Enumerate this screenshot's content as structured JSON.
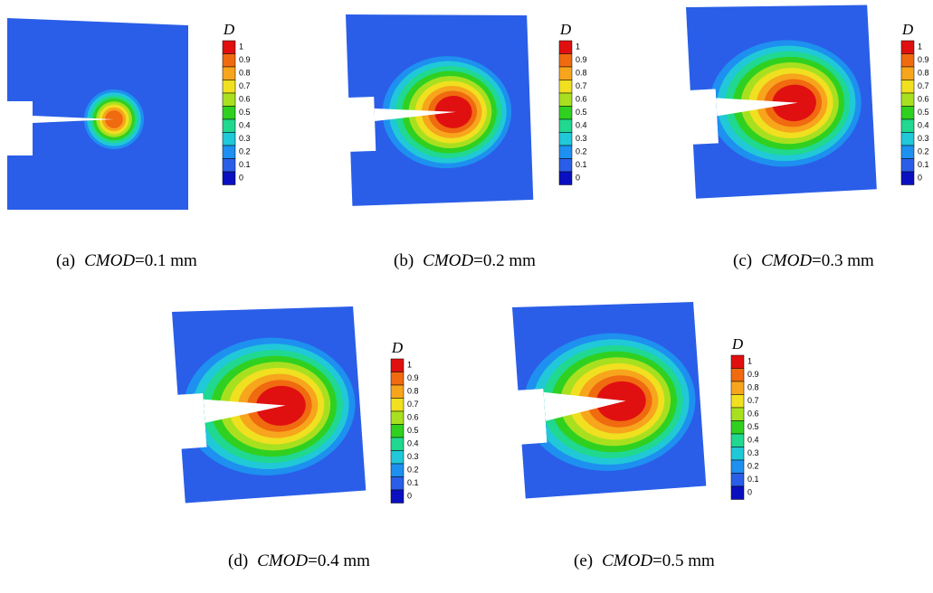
{
  "panels": [
    {
      "label": "(a)",
      "variable": "CMOD",
      "value": "=0.1 mm"
    },
    {
      "label": "(b)",
      "variable": "CMOD",
      "value": "=0.2 mm"
    },
    {
      "label": "(c)",
      "variable": "CMOD",
      "value": "=0.3 mm"
    },
    {
      "label": "(d)",
      "variable": "CMOD",
      "value": "=0.4 mm"
    },
    {
      "label": "(e)",
      "variable": "CMOD",
      "value": "=0.5 mm"
    }
  ],
  "colorbar": {
    "title": "D",
    "ticks": [
      "1",
      "0.9",
      "0.8",
      "0.7",
      "0.6",
      "0.5",
      "0.4",
      "0.3",
      "0.2",
      "0.1",
      "0"
    ],
    "colors": [
      "#e01010",
      "#f06a10",
      "#f7a51c",
      "#f0e020",
      "#a8e020",
      "#30d020",
      "#20d890",
      "#20c8d8",
      "#1e90f0",
      "#2a5ee8",
      "#0a10c0"
    ]
  }
}
